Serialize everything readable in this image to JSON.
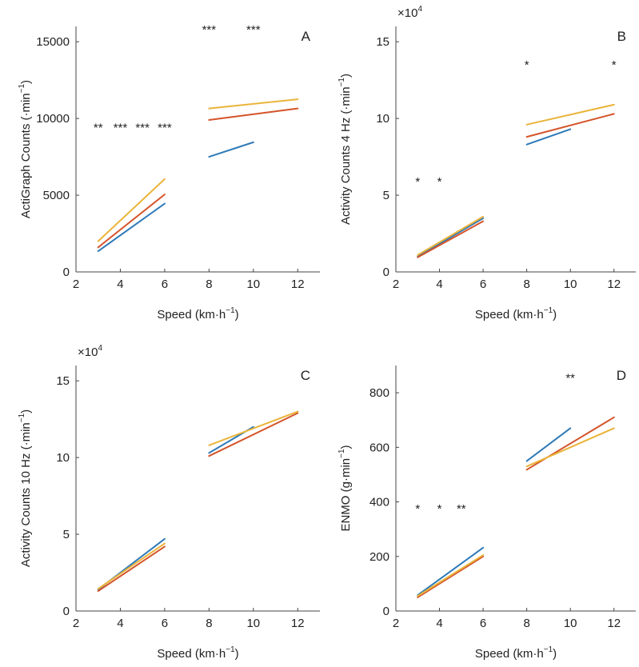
{
  "colors": {
    "blue": "#2e7ab8",
    "red": "#d4542a",
    "yellow": "#eab43a"
  },
  "chart_data": [
    {
      "type": "line",
      "panel_label": "A",
      "ylabel": {
        "main": "ActiGraph Counts (·min",
        "sup": "−1",
        "tail": ")"
      },
      "xlabel": {
        "main": "Speed (km·h",
        "sup": "−1",
        "tail": ")"
      },
      "xlim": [
        2,
        13
      ],
      "ylim": [
        0,
        16000
      ],
      "xticks": [
        2,
        4,
        6,
        8,
        10,
        12
      ],
      "yticks": [
        0,
        5000,
        10000,
        15000
      ],
      "exponent": null,
      "series": [
        {
          "color": "blue",
          "segments": [
            {
              "x": [
                3,
                6
              ],
              "y": [
                1350,
                4450
              ]
            },
            {
              "x": [
                8,
                10
              ],
              "y": [
                7500,
                8450
              ]
            }
          ]
        },
        {
          "color": "red",
          "segments": [
            {
              "x": [
                3,
                6
              ],
              "y": [
                1600,
                5050
              ]
            },
            {
              "x": [
                8,
                12
              ],
              "y": [
                9900,
                10650
              ]
            }
          ]
        },
        {
          "color": "yellow",
          "segments": [
            {
              "x": [
                3,
                6
              ],
              "y": [
                2000,
                6050
              ]
            },
            {
              "x": [
                8,
                12
              ],
              "y": [
                10650,
                11250
              ]
            }
          ]
        }
      ],
      "annotations": [
        {
          "x": 3,
          "y": 9400,
          "text": "**"
        },
        {
          "x": 4,
          "y": 9400,
          "text": "***"
        },
        {
          "x": 5,
          "y": 9400,
          "text": "***"
        },
        {
          "x": 6,
          "y": 9400,
          "text": "***"
        },
        {
          "x": 8,
          "y": 15800,
          "text": "***"
        },
        {
          "x": 10,
          "y": 15800,
          "text": "***"
        }
      ]
    },
    {
      "type": "line",
      "panel_label": "B",
      "ylabel": {
        "main": "Activity Counts 4 Hz (·min",
        "sup": "−1",
        "tail": ")"
      },
      "xlabel": {
        "main": "Speed (km·h",
        "sup": "−1",
        "tail": ")"
      },
      "xlim": [
        2,
        13
      ],
      "ylim": [
        0,
        16
      ],
      "xticks": [
        2,
        4,
        6,
        8,
        10,
        12
      ],
      "yticks": [
        0,
        5,
        10,
        15
      ],
      "exponent": {
        "base": "×10",
        "power": "4"
      },
      "series": [
        {
          "color": "blue",
          "segments": [
            {
              "x": [
                3,
                6
              ],
              "y": [
                1.0,
                3.5
              ]
            },
            {
              "x": [
                8,
                10
              ],
              "y": [
                8.3,
                9.3
              ]
            }
          ]
        },
        {
          "color": "red",
          "segments": [
            {
              "x": [
                3,
                6
              ],
              "y": [
                0.95,
                3.3
              ]
            },
            {
              "x": [
                8,
                12
              ],
              "y": [
                8.8,
                10.3
              ]
            }
          ]
        },
        {
          "color": "yellow",
          "segments": [
            {
              "x": [
                3,
                6
              ],
              "y": [
                1.1,
                3.6
              ]
            },
            {
              "x": [
                8,
                12
              ],
              "y": [
                9.6,
                10.9
              ]
            }
          ]
        }
      ],
      "annotations": [
        {
          "x": 3,
          "y": 5.9,
          "text": "*"
        },
        {
          "x": 4,
          "y": 5.9,
          "text": "*"
        },
        {
          "x": 8,
          "y": 13.5,
          "text": "*"
        },
        {
          "x": 12,
          "y": 13.5,
          "text": "*"
        }
      ]
    },
    {
      "type": "line",
      "panel_label": "C",
      "ylabel": {
        "main": "Activity Counts 10 Hz (·min",
        "sup": "−1",
        "tail": ")"
      },
      "xlabel": {
        "main": "Speed (km·h",
        "sup": "−1",
        "tail": ")"
      },
      "xlim": [
        2,
        13
      ],
      "ylim": [
        0,
        16
      ],
      "xticks": [
        2,
        4,
        6,
        8,
        10,
        12
      ],
      "yticks": [
        0,
        5,
        10,
        15
      ],
      "exponent": {
        "base": "×10",
        "power": "4"
      },
      "series": [
        {
          "color": "blue",
          "segments": [
            {
              "x": [
                3,
                6
              ],
              "y": [
                1.4,
                4.7
              ]
            },
            {
              "x": [
                8,
                10
              ],
              "y": [
                10.3,
                12.0
              ]
            }
          ]
        },
        {
          "color": "red",
          "segments": [
            {
              "x": [
                3,
                6
              ],
              "y": [
                1.3,
                4.2
              ]
            },
            {
              "x": [
                8,
                12
              ],
              "y": [
                10.1,
                12.9
              ]
            }
          ]
        },
        {
          "color": "yellow",
          "segments": [
            {
              "x": [
                3,
                6
              ],
              "y": [
                1.45,
                4.4
              ]
            },
            {
              "x": [
                8,
                12
              ],
              "y": [
                10.8,
                13.0
              ]
            }
          ]
        }
      ],
      "annotations": []
    },
    {
      "type": "line",
      "panel_label": "D",
      "ylabel": {
        "main": "ENMO (g·min",
        "sup": "−1",
        "tail": ")"
      },
      "xlabel": {
        "main": "Speed (km·h",
        "sup": "−1",
        "tail": ")"
      },
      "xlim": [
        2,
        13
      ],
      "ylim": [
        0,
        900
      ],
      "xticks": [
        2,
        4,
        6,
        8,
        10,
        12
      ],
      "yticks": [
        0,
        200,
        400,
        600,
        800
      ],
      "exponent": null,
      "series": [
        {
          "color": "blue",
          "segments": [
            {
              "x": [
                3,
                6
              ],
              "y": [
                58,
                232
              ]
            },
            {
              "x": [
                8,
                10
              ],
              "y": [
                550,
                670
              ]
            }
          ]
        },
        {
          "color": "red",
          "segments": [
            {
              "x": [
                3,
                6
              ],
              "y": [
                50,
                200
              ]
            },
            {
              "x": [
                8,
                12
              ],
              "y": [
                518,
                710
              ]
            }
          ]
        },
        {
          "color": "yellow",
          "segments": [
            {
              "x": [
                3,
                6
              ],
              "y": [
                55,
                205
              ]
            },
            {
              "x": [
                8,
                12
              ],
              "y": [
                530,
                670
              ]
            }
          ]
        }
      ],
      "annotations": [
        {
          "x": 3,
          "y": 375,
          "text": "*"
        },
        {
          "x": 4,
          "y": 375,
          "text": "*"
        },
        {
          "x": 5,
          "y": 375,
          "text": "**"
        },
        {
          "x": 10,
          "y": 855,
          "text": "**"
        }
      ]
    }
  ]
}
